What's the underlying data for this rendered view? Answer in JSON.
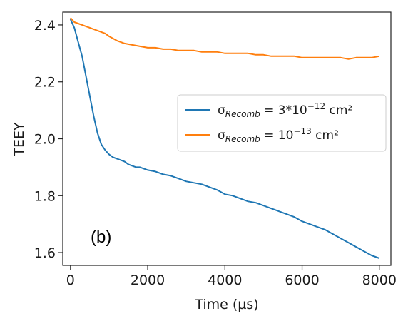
{
  "chart_data": {
    "type": "line",
    "xlabel": "Time (µs)",
    "ylabel": "TEEY",
    "xlim": [
      -200,
      8300
    ],
    "ylim": [
      1.555,
      2.445
    ],
    "xticks": [
      0,
      2000,
      4000,
      6000,
      8000
    ],
    "xtick_labels": [
      "0",
      "2000",
      "4000",
      "6000",
      "8000"
    ],
    "yticks": [
      1.6,
      1.8,
      2.0,
      2.2,
      2.4
    ],
    "ytick_labels": [
      "1.6",
      "1.8",
      "2.0",
      "2.2",
      "2.4"
    ],
    "grid": false,
    "annotation": "(b)",
    "legend": {
      "placement": "center-right",
      "entries": [
        {
          "prefix": "σ",
          "sub": "Recomb",
          "suffix_pre": " = 3*10",
          "sup": "−12",
          "suffix_post": " cm²"
        },
        {
          "prefix": "σ",
          "sub": "Recomb",
          "suffix_pre": " = 10",
          "sup": "−13",
          "suffix_post": " cm²"
        }
      ]
    },
    "series": [
      {
        "color": "#1f77b4",
        "x": [
          0,
          100,
          200,
          300,
          400,
          500,
          600,
          700,
          800,
          900,
          1000,
          1100,
          1200,
          1300,
          1400,
          1500,
          1600,
          1700,
          1800,
          1900,
          2000,
          2200,
          2400,
          2600,
          2800,
          3000,
          3200,
          3400,
          3600,
          3800,
          4000,
          4200,
          4400,
          4600,
          4800,
          5000,
          5200,
          5400,
          5600,
          5800,
          6000,
          6200,
          6400,
          6600,
          6800,
          7000,
          7200,
          7400,
          7600,
          7800,
          8000
        ],
        "y": [
          2.42,
          2.39,
          2.34,
          2.29,
          2.22,
          2.15,
          2.08,
          2.02,
          1.98,
          1.96,
          1.945,
          1.935,
          1.93,
          1.925,
          1.92,
          1.91,
          1.905,
          1.9,
          1.9,
          1.895,
          1.89,
          1.885,
          1.875,
          1.87,
          1.86,
          1.85,
          1.845,
          1.84,
          1.83,
          1.82,
          1.805,
          1.8,
          1.79,
          1.78,
          1.775,
          1.765,
          1.755,
          1.745,
          1.735,
          1.725,
          1.71,
          1.7,
          1.69,
          1.68,
          1.665,
          1.65,
          1.635,
          1.62,
          1.605,
          1.59,
          1.58
        ]
      },
      {
        "color": "#ff7f0e",
        "x": [
          0,
          100,
          200,
          300,
          400,
          500,
          600,
          700,
          800,
          900,
          1000,
          1200,
          1400,
          1600,
          1800,
          2000,
          2200,
          2400,
          2600,
          2800,
          3000,
          3200,
          3400,
          3600,
          3800,
          4000,
          4200,
          4400,
          4600,
          4800,
          5000,
          5200,
          5400,
          5600,
          5800,
          6000,
          6200,
          6400,
          6600,
          6800,
          7000,
          7200,
          7400,
          7600,
          7800,
          8000
        ],
        "y": [
          2.425,
          2.41,
          2.405,
          2.4,
          2.395,
          2.39,
          2.385,
          2.38,
          2.375,
          2.37,
          2.36,
          2.345,
          2.335,
          2.33,
          2.325,
          2.32,
          2.32,
          2.315,
          2.315,
          2.31,
          2.31,
          2.31,
          2.305,
          2.305,
          2.305,
          2.3,
          2.3,
          2.3,
          2.3,
          2.295,
          2.295,
          2.29,
          2.29,
          2.29,
          2.29,
          2.285,
          2.285,
          2.285,
          2.285,
          2.285,
          2.285,
          2.28,
          2.285,
          2.285,
          2.285,
          2.29
        ]
      }
    ]
  }
}
